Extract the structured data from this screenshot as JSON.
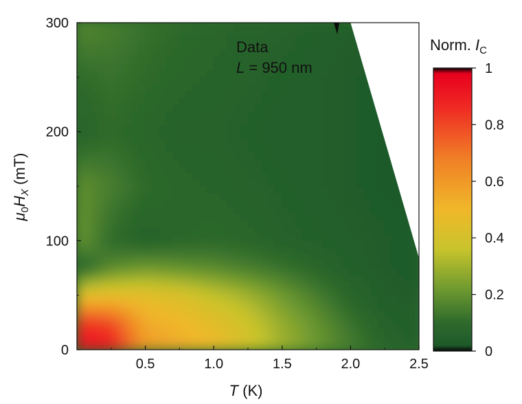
{
  "chart_data": {
    "type": "heatmap",
    "description_annotation": [
      "Data",
      "L = 950 nm"
    ],
    "annotation": {
      "line1": "Data",
      "line2_var": "L",
      "line2_rest": " = 950 nm"
    },
    "xlabel": {
      "var": "T",
      "unit": " (K)"
    },
    "ylabel": {
      "mu": "μ",
      "mu_sub": "0",
      "var": "H",
      "var_sub": "X",
      "unit": " (mT)"
    },
    "xlim": [
      0,
      2.5
    ],
    "ylim": [
      0,
      300
    ],
    "x_ticks": [
      {
        "value": 0.5,
        "label": "0.5"
      },
      {
        "value": 1.0,
        "label": "1.0"
      },
      {
        "value": 1.5,
        "label": "1.5"
      },
      {
        "value": 2.0,
        "label": "2.0"
      },
      {
        "value": 2.5,
        "label": "2.5"
      }
    ],
    "y_ticks": [
      {
        "value": 0,
        "label": "0"
      },
      {
        "value": 100,
        "label": "100"
      },
      {
        "value": 200,
        "label": "200"
      },
      {
        "value": 300,
        "label": "300"
      }
    ],
    "colorbar": {
      "title_text": "Norm. ",
      "title_var": "I",
      "title_sub": "C",
      "range": [
        0,
        1
      ],
      "ticks": [
        {
          "value": 0,
          "label": "0"
        },
        {
          "value": 0.2,
          "label": "0.2"
        },
        {
          "value": 0.4,
          "label": "0.4"
        },
        {
          "value": 0.6,
          "label": "0.6"
        },
        {
          "value": 0.8,
          "label": "0.8"
        },
        {
          "value": 1,
          "label": "1"
        }
      ],
      "colors": [
        "#050505",
        "#1e5a2a",
        "#2e6a2c",
        "#6f9a30",
        "#c8c42c",
        "#f0b82a",
        "#f07f26",
        "#ef2a24",
        "#e8001e",
        "#050505"
      ],
      "color_stops": [
        0,
        0.02,
        0.1,
        0.22,
        0.36,
        0.5,
        0.68,
        0.86,
        0.98,
        1
      ]
    },
    "data_boundary": {
      "description": "white (no data) region above line",
      "points": [
        [
          2.0,
          300
        ],
        [
          2.5,
          82
        ]
      ]
    },
    "z_samples": {
      "x": [
        0.0,
        0.25,
        0.5,
        0.75,
        1.0,
        1.25,
        1.5,
        1.75,
        2.0,
        2.25,
        2.5
      ],
      "y": [
        0,
        25,
        50,
        75,
        100,
        150,
        200,
        250,
        300
      ],
      "z": [
        [
          0.95,
          0.92,
          0.6,
          0.55,
          0.5,
          0.4,
          0.3,
          0.22,
          0.15,
          0.08,
          0.05
        ],
        [
          0.85,
          0.8,
          0.55,
          0.5,
          0.45,
          0.38,
          0.28,
          0.2,
          0.12,
          0.06,
          0.04
        ],
        [
          0.45,
          0.46,
          0.45,
          0.42,
          0.36,
          0.3,
          0.22,
          0.15,
          0.08,
          0.04,
          0.03
        ],
        [
          0.05,
          0.18,
          0.22,
          0.2,
          0.18,
          0.15,
          0.12,
          0.08,
          0.05,
          0.03,
          0.02
        ],
        [
          0.22,
          0.1,
          0.06,
          0.08,
          0.09,
          0.08,
          0.06,
          0.05,
          0.04,
          0.03,
          0.02
        ],
        [
          0.2,
          0.15,
          0.1,
          0.08,
          0.07,
          0.06,
          0.05,
          0.04,
          0.03,
          0.02,
          0.02
        ],
        [
          0.06,
          0.1,
          0.08,
          0.06,
          0.06,
          0.05,
          0.04,
          0.04,
          0.03,
          0.02,
          0.02
        ],
        [
          0.1,
          0.12,
          0.1,
          0.08,
          0.07,
          0.06,
          0.05,
          0.04,
          0.03,
          0.02,
          0.02
        ],
        [
          0.18,
          0.15,
          0.12,
          0.1,
          0.08,
          0.07,
          0.06,
          0.05,
          0.04,
          0.03,
          0.02
        ]
      ]
    }
  }
}
